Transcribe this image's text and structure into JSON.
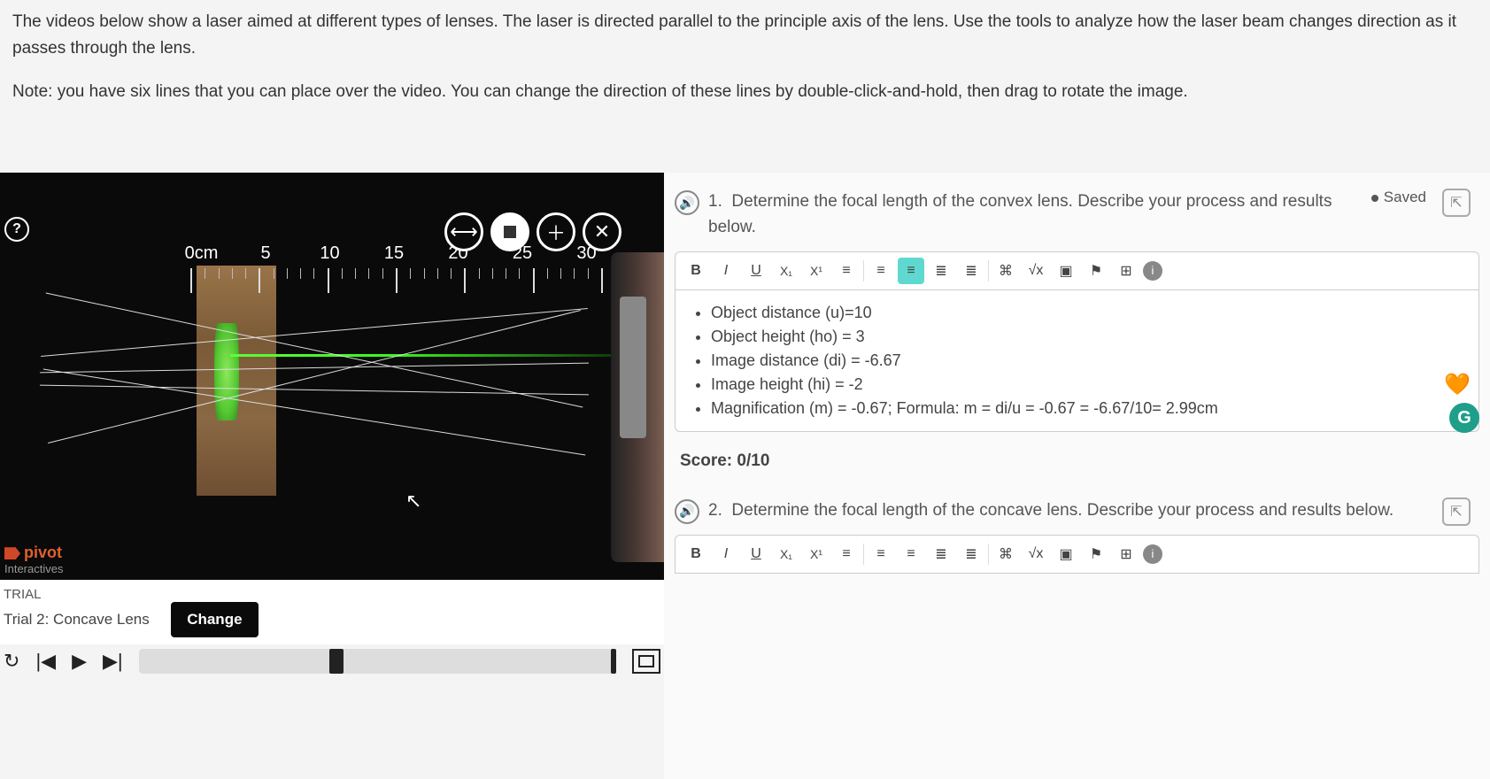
{
  "instructions": {
    "p1": "The videos below show a laser aimed at different types of lenses. The laser is directed parallel to the principle axis of the lens. Use the tools to analyze how the laser beam changes direction as it passes through the lens.",
    "p2": "Note: you have six lines that you can place over the video. You can change the direction of these lines by double-click-and-hold, then drag to rotate the image."
  },
  "video": {
    "ruler_labels": [
      "0cm",
      "5",
      "10",
      "15",
      "20",
      "25",
      "30"
    ],
    "logo_brand": "pivot",
    "logo_tag": "Interactives",
    "trial_heading": "TRIAL",
    "trial_name": "Trial 2: Concave Lens",
    "change_label": "Change"
  },
  "tool_buttons": {
    "ruler": "⟷",
    "stop": "■",
    "zoom": "＋",
    "draw": "✕"
  },
  "playback": {
    "refresh": "↻",
    "prev": "|◀",
    "play": "▶",
    "next": "▶|"
  },
  "right": {
    "saved_label": "Saved",
    "q1": {
      "num": "1.",
      "text": "Determine the focal length of the convex lens. Describe your process and results below.",
      "answers": [
        "Object distance (u)=10",
        "Object height (ho) = 3",
        "Image distance (di) = -6.67",
        "Image height (hi) = -2",
        "Magnification (m) = -0.67;     Formula: m = di/u = -0.67 = -6.67/10= 2.99cm"
      ],
      "score_label": "Score:",
      "score_value": "0/10"
    },
    "q2": {
      "num": "2.",
      "text": "Determine the focal length of the concave lens. Describe your process and results below."
    }
  },
  "editor_tools": {
    "bold": "B",
    "italic": "I",
    "underline": "U",
    "sub": "X₁",
    "sup": "X¹",
    "list_menu": "≡",
    "ol": "≡",
    "ul": "≡",
    "indent": "≣",
    "outdent": "≣",
    "link": "⌘",
    "math": "√x",
    "image": "▣",
    "flag": "⚑",
    "table": "⊞",
    "info": "i"
  },
  "colors": {
    "video_bg": "#0a0a0a",
    "accent_active": "#5fd9d0",
    "wood1": "#9a7449",
    "laser": "#3aff1a",
    "info_badge": "#888888",
    "g_badge": "#1f9e8a"
  }
}
